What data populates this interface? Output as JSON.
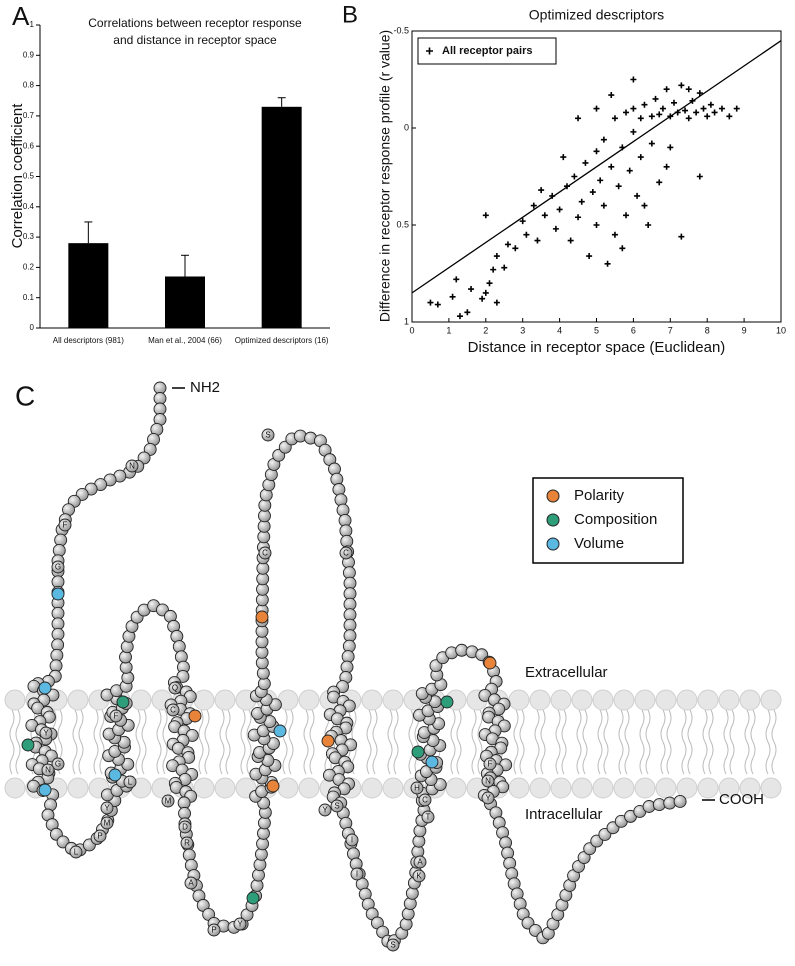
{
  "chart_data": [
    {
      "type": "bar",
      "panel": "A",
      "title": [
        "Correlations between receptor response",
        "and distance in receptor space"
      ],
      "ylabel": "Correlation coefficient",
      "categories": [
        "All descriptors (981)",
        "Man et al., 2004 (66)",
        "Optimized descriptors (16)"
      ],
      "values": [
        0.28,
        0.17,
        0.73
      ],
      "errors": [
        0.07,
        0.07,
        0.03
      ],
      "color": "#000000",
      "ylim": [
        0,
        1
      ],
      "yticks": [
        0,
        0.1,
        0.2,
        0.3,
        0.4,
        0.5,
        0.6,
        0.7,
        0.8,
        0.9,
        1
      ]
    },
    {
      "type": "scatter",
      "panel": "B",
      "title": "Optimized descriptors",
      "xlabel": "Distance in receptor space (Euclidean)",
      "ylabel": "Difference in receptor response profile (r value)",
      "xlim": [
        0,
        10
      ],
      "ylim": [
        1,
        -0.5
      ],
      "xticks": [
        0,
        1,
        2,
        3,
        4,
        5,
        6,
        7,
        8,
        9,
        10
      ],
      "yticks": [
        -0.5,
        0,
        0.5,
        1
      ],
      "legend": "upper left",
      "series": [
        {
          "name": "All receptor pairs",
          "color": "#000000",
          "x": [
            0.5,
            0.7,
            1.1,
            1.2,
            1.5,
            1.6,
            1.9,
            2.0,
            2.1,
            2.2,
            2.3,
            2.3,
            2.5,
            2.6,
            2.8,
            3.0,
            3.1,
            3.3,
            3.4,
            3.6,
            3.8,
            3.9,
            4.0,
            4.2,
            4.3,
            4.4,
            4.5,
            4.6,
            4.7,
            4.8,
            4.9,
            5.0,
            5.0,
            5.1,
            5.2,
            5.2,
            5.3,
            5.4,
            5.5,
            5.5,
            5.6,
            5.7,
            5.8,
            5.8,
            5.9,
            6.0,
            6.0,
            6.1,
            6.2,
            6.2,
            6.3,
            6.4,
            6.5,
            6.5,
            6.6,
            6.7,
            6.7,
            6.8,
            6.9,
            7.0,
            7.0,
            7.1,
            7.2,
            7.3,
            7.3,
            7.4,
            7.5,
            7.6,
            7.7,
            7.8,
            7.9,
            8.0,
            8.1,
            8.2,
            8.4,
            8.6,
            8.8,
            5.0,
            4.5,
            6.3,
            5.7,
            4.1,
            3.5,
            6.9,
            7.8,
            2.0,
            1.3,
            5.4,
            6.0,
            7.5
          ],
          "values": [
            0.9,
            0.91,
            0.87,
            0.78,
            0.95,
            0.83,
            0.88,
            0.85,
            0.8,
            0.73,
            0.9,
            0.66,
            0.72,
            0.6,
            0.62,
            0.48,
            0.55,
            0.4,
            0.58,
            0.45,
            0.35,
            0.52,
            0.42,
            0.3,
            0.58,
            0.25,
            0.46,
            0.38,
            0.18,
            0.66,
            0.33,
            0.12,
            0.5,
            0.27,
            0.06,
            0.4,
            0.7,
            0.2,
            -0.05,
            0.55,
            0.3,
            0.1,
            -0.08,
            0.45,
            0.22,
            -0.1,
            0.02,
            0.35,
            -0.05,
            0.15,
            -0.12,
            0.5,
            -0.06,
            0.08,
            -0.15,
            -0.07,
            0.28,
            -0.1,
            -0.2,
            -0.06,
            0.1,
            -0.13,
            -0.08,
            -0.22,
            0.56,
            -0.09,
            -0.05,
            -0.14,
            -0.08,
            -0.18,
            -0.1,
            -0.06,
            -0.12,
            -0.08,
            -0.1,
            -0.06,
            -0.1,
            -0.1,
            -0.05,
            0.4,
            0.62,
            0.15,
            0.32,
            0.2,
            0.25,
            0.45,
            0.97,
            -0.17,
            -0.25,
            -0.2
          ]
        }
      ],
      "fit_line": {
        "x": [
          0,
          10
        ],
        "values": [
          0.85,
          -0.45
        ]
      }
    }
  ],
  "diagram": {
    "panel": "C",
    "labels": {
      "n_terminus": "NH2",
      "c_terminus": "COOH",
      "extracellular": "Extracellular",
      "intracellular": "Intracellular"
    },
    "legend": [
      {
        "label": "Polarity",
        "color": "#e8843a"
      },
      {
        "label": "Composition",
        "color": "#2e9e7a"
      },
      {
        "label": "Volume",
        "color": "#5bb8e0"
      }
    ],
    "residues": [
      "N",
      "F",
      "G",
      "Y",
      "G",
      "N",
      "Y",
      "M",
      "P",
      "L",
      "F",
      "Q",
      "L",
      "C",
      "M",
      "D",
      "R",
      "A",
      "P",
      "Y",
      "C",
      "S",
      "C",
      "Y",
      "S",
      "I",
      "I",
      "S",
      "H",
      "C",
      "T",
      "A",
      "K",
      "F",
      "N",
      "Y"
    ]
  }
}
